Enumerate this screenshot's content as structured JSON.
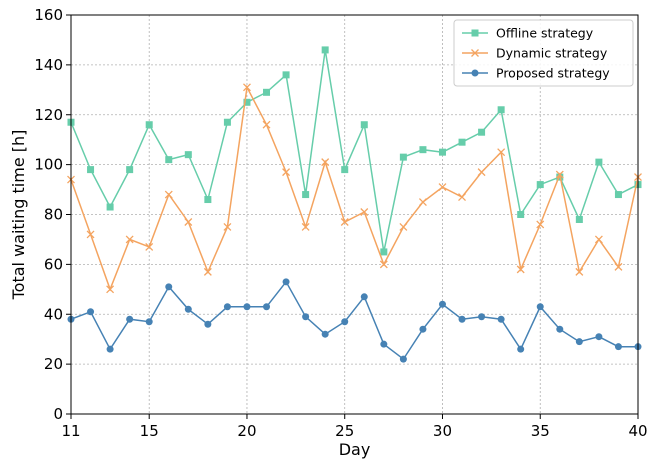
{
  "chart_data": {
    "type": "line",
    "title": "",
    "xlabel": "Day",
    "ylabel": "Total waiting time [h]",
    "xlim": [
      11,
      40
    ],
    "ylim": [
      0,
      160
    ],
    "xticks": [
      11,
      15,
      20,
      25,
      30,
      35,
      40
    ],
    "yticks": [
      0,
      20,
      40,
      60,
      80,
      100,
      120,
      140,
      160
    ],
    "grid": true,
    "legend_position": "top-right",
    "x": [
      11,
      12,
      13,
      14,
      15,
      16,
      17,
      18,
      19,
      20,
      21,
      22,
      23,
      24,
      25,
      26,
      27,
      28,
      29,
      30,
      31,
      32,
      33,
      34,
      35,
      36,
      37,
      38,
      39,
      40
    ],
    "series": [
      {
        "name": "Offline strategy",
        "color": "#66cdaa",
        "marker": "square",
        "values": [
          117,
          98,
          83,
          98,
          116,
          102,
          104,
          86,
          117,
          125,
          129,
          136,
          88,
          146,
          98,
          116,
          65,
          103,
          106,
          105,
          109,
          113,
          122,
          80,
          92,
          95,
          78,
          101,
          88,
          92
        ]
      },
      {
        "name": "Dynamic strategy",
        "color": "#f4a460",
        "marker": "x",
        "values": [
          94,
          72,
          50,
          70,
          67,
          88,
          77,
          57,
          75,
          131,
          116,
          97,
          75,
          101,
          77,
          81,
          60,
          75,
          85,
          91,
          87,
          97,
          105,
          58,
          76,
          96,
          57,
          70,
          59,
          95
        ]
      },
      {
        "name": "Proposed strategy",
        "color": "#4682b4",
        "marker": "circle",
        "values": [
          38,
          41,
          26,
          38,
          37,
          51,
          42,
          36,
          43,
          43,
          43,
          53,
          39,
          32,
          37,
          47,
          28,
          22,
          34,
          44,
          38,
          39,
          38,
          26,
          43,
          34,
          29,
          31,
          27,
          27
        ]
      }
    ]
  }
}
